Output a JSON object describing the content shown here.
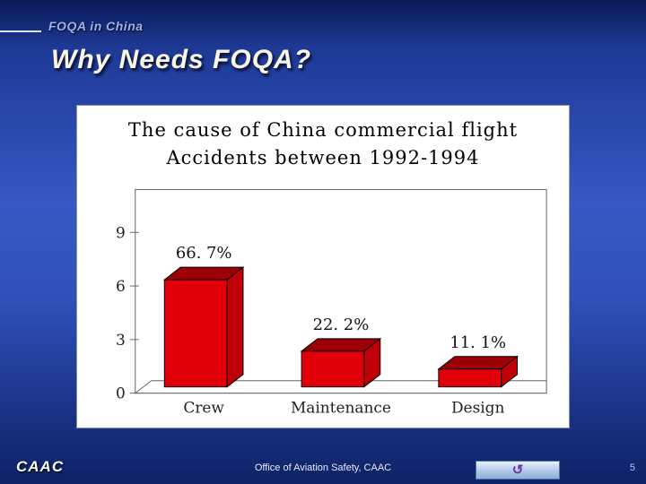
{
  "slide": {
    "header": {
      "eyebrow": "FOQA in China"
    },
    "title": "Why Needs FOQA?",
    "footer": {
      "brand": "CAAC",
      "center_text": "Office of Aviation Safety, CAAC",
      "page_number": "5",
      "action_icon": "↺"
    }
  },
  "chart_data": {
    "type": "bar",
    "style": "3d-column",
    "title": "The cause of China commercial flight Accidents between 1992-1994",
    "title_lines": [
      "The cause of China commercial flight",
      "Accidents between 1992-1994"
    ],
    "categories": [
      "Crew",
      "Maintenance",
      "Design"
    ],
    "values": [
      6,
      2,
      1
    ],
    "data_labels": [
      "66. 7%",
      "22. 2%",
      "11. 1%"
    ],
    "yticks": [
      0,
      3,
      6,
      9
    ],
    "ylim": [
      0,
      9
    ],
    "xlabel": "",
    "ylabel": "",
    "legend": false,
    "grid": false,
    "bar_colors": {
      "front": "#e1000a",
      "top": "#9c0006",
      "side": "#c00008"
    },
    "frame_color": "#666666"
  }
}
